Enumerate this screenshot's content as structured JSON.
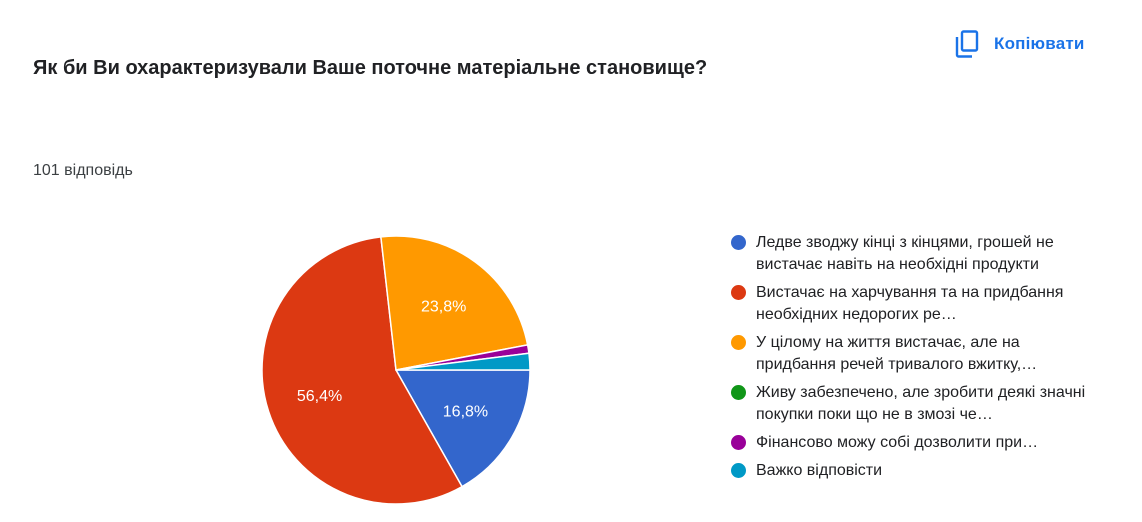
{
  "header": {
    "title": "Як би Ви охарактеризували Ваше поточне матеріальне становище?",
    "copy_label": "Копіювати",
    "copy_icon": "copy-icon",
    "response_count": "101 відповідь"
  },
  "colors": {
    "accent": "#1a73e8"
  },
  "chart_data": {
    "type": "pie",
    "legend_position": "right",
    "slices": [
      {
        "label": "Ледве зводжу кінці з кінцями, грошей не вистачає навіть на необхідні продукти",
        "value": 16.8,
        "label_text": "16,8%",
        "color": "#3366cc"
      },
      {
        "label": "Вистачає на харчування та на придбання необхідних недорогих речей",
        "value": 56.4,
        "label_text": "56,4%",
        "color": "#dc3912"
      },
      {
        "label": "У цілому на життя вистачає, але на придбання речей тривалого вжитку, таких як меблі, холодильник, телевізор, доводиться позичати гроші",
        "value": 23.8,
        "label_text": "23,8%",
        "color": "#ff9900"
      },
      {
        "label": "Живу забезпечено, але зробити деякі значні покупки поки що не в змозі через брак грошей",
        "value": 0,
        "label_text": "",
        "color": "#109618"
      },
      {
        "label": "Фінансово можу собі дозволити придбання практично всього, що хочу",
        "value": 1.0,
        "label_text": "",
        "color": "#990099"
      },
      {
        "label": "Важко відповісти",
        "value": 2.0,
        "label_text": "",
        "color": "#0099c6"
      }
    ]
  },
  "legend_items": [
    "Ледве зводжу кінці з кінцями, грошей не вистачає навіть на необхідні продукти",
    "Вистачає на харчування та на придбання необхідних недорогих ре…",
    "У цілому на життя вистачає, але на придбання речей тривалого вжитку,…",
    "Живу забезпечено, але зробити деякі значні покупки поки що не в змозі че…",
    "Фінансово можу собі дозволити при…",
    "Важко відповісти"
  ]
}
